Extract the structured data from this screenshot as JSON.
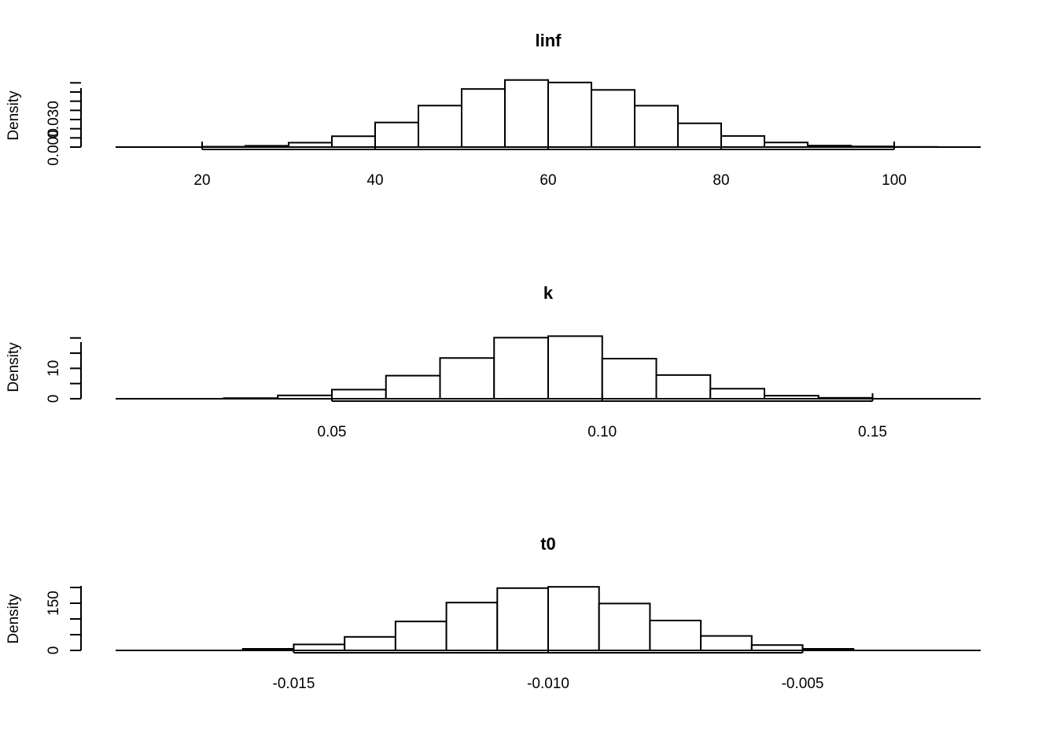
{
  "chart_data": [
    {
      "type": "bar",
      "title": "linf",
      "ylabel": "Density",
      "bin_edges": [
        15,
        20,
        25,
        30,
        35,
        40,
        45,
        50,
        55,
        60,
        65,
        70,
        75,
        80,
        85,
        90,
        95,
        100,
        105,
        110
      ],
      "values": [
        0.0,
        0.0004,
        0.0014,
        0.0048,
        0.0118,
        0.0268,
        0.0452,
        0.0633,
        0.0731,
        0.0704,
        0.0623,
        0.0451,
        0.0259,
        0.0121,
        0.005,
        0.0016,
        0.0007,
        0.0002,
        0.0
      ],
      "xlim": [
        10,
        110
      ],
      "ylim": [
        0,
        0.075
      ],
      "x_ticks": [
        20,
        40,
        60,
        80,
        100
      ],
      "x_tick_labels": [
        "20",
        "40",
        "60",
        "80",
        "100"
      ],
      "y_ticks": [
        0,
        0.01,
        0.02,
        0.03,
        0.04,
        0.05,
        0.06,
        0.07
      ],
      "y_tick_labels": [
        {
          "value": 0,
          "text": "0.000"
        },
        {
          "value": 0.03,
          "text": "0.030"
        }
      ]
    },
    {
      "type": "bar",
      "title": "k",
      "ylabel": "Density",
      "bin_edges": [
        0.02,
        0.03,
        0.04,
        0.05,
        0.06,
        0.07,
        0.08,
        0.09,
        0.1,
        0.11,
        0.12,
        0.13,
        0.14,
        0.15,
        0.16
      ],
      "values": [
        0.0,
        0.2,
        1.1,
        3.0,
        7.6,
        13.4,
        20.1,
        20.6,
        13.2,
        7.8,
        3.3,
        1.0,
        0.3,
        0.0
      ],
      "xlim": [
        0.01,
        0.17
      ],
      "ylim": [
        0,
        22
      ],
      "x_ticks": [
        0.05,
        0.1,
        0.15
      ],
      "x_tick_labels": [
        "0.05",
        "0.10",
        "0.15"
      ],
      "y_ticks": [
        0,
        5,
        10,
        15,
        20
      ],
      "y_tick_labels": [
        {
          "value": 0,
          "text": "0"
        },
        {
          "value": 10,
          "text": "10"
        }
      ]
    },
    {
      "type": "bar",
      "title": "t0",
      "ylabel": "Density",
      "bin_edges": [
        -0.017,
        -0.016,
        -0.015,
        -0.014,
        -0.013,
        -0.012,
        -0.011,
        -0.01,
        -0.009,
        -0.008,
        -0.007,
        -0.006,
        -0.005,
        -0.004,
        -0.003,
        -0.002
      ],
      "values": [
        0,
        5,
        19,
        43,
        92,
        152,
        198,
        202,
        149,
        95,
        46,
        17,
        5,
        0,
        0
      ],
      "xlim": [
        -0.0185,
        -0.0015
      ],
      "ylim": [
        0,
        205
      ],
      "x_ticks": [
        -0.015,
        -0.01,
        -0.005
      ],
      "x_tick_labels": [
        "-0.015",
        "-0.010",
        "-0.005"
      ],
      "y_ticks": [
        0,
        50,
        100,
        150,
        200
      ],
      "y_tick_labels": [
        {
          "value": 0,
          "text": "0"
        },
        {
          "value": 150,
          "text": "150"
        }
      ]
    }
  ]
}
